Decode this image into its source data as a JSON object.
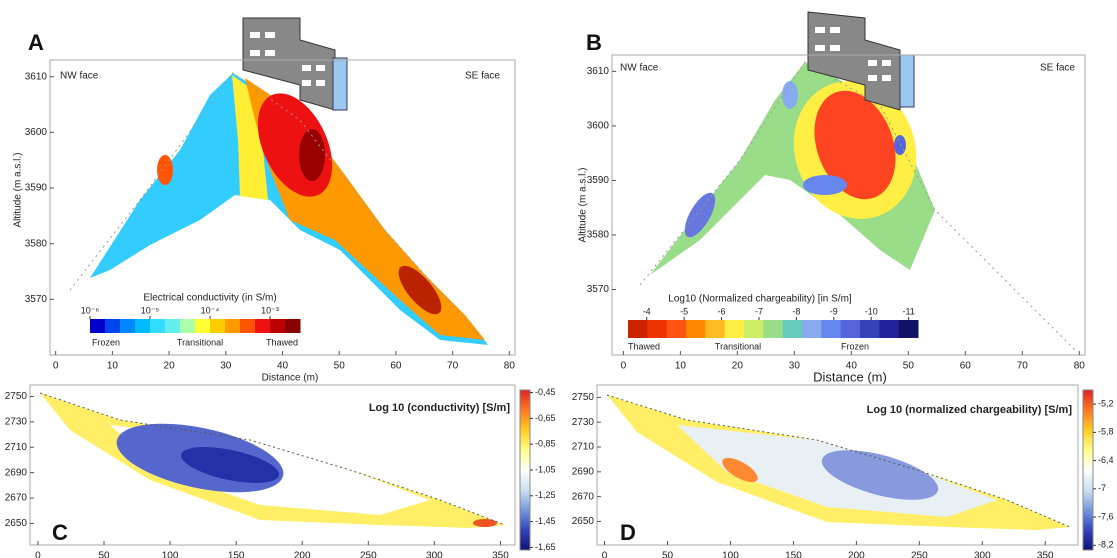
{
  "chart_data": [
    {
      "type": "contour",
      "panel": "A",
      "annotations": [
        "NW face",
        "SE face"
      ],
      "xlabel": "Distance (m)",
      "ylabel": "Altitude (m a.s.l.)",
      "xlim": [
        -1,
        81
      ],
      "xticks": [
        0,
        10,
        20,
        30,
        40,
        50,
        60,
        70,
        80
      ],
      "ylim": [
        3560,
        3613
      ],
      "yticks": [
        3570,
        3580,
        3590,
        3600,
        3610
      ],
      "colorbar": {
        "title": "Electrical conductivity (in S/m)",
        "clim": [
          -6,
          -2.5
        ],
        "ticks": [
          {
            "value": -6,
            "label": "10⁻⁶"
          },
          {
            "value": -5,
            "label": "10⁻⁵"
          },
          {
            "value": -4,
            "label": "10⁻⁴"
          },
          {
            "value": -3,
            "label": "10⁻³"
          }
        ],
        "colors": [
          "#0000cc",
          "#0044ee",
          "#0088ff",
          "#00bbff",
          "#33ddff",
          "#66eeee",
          "#aaffaa",
          "#ffff33",
          "#ffcc00",
          "#ff9900",
          "#ff5500",
          "#ee1111",
          "#bb0000",
          "#880000"
        ],
        "class_labels": [
          "Frozen",
          "Transitional",
          "Thawed"
        ]
      }
    },
    {
      "type": "contour",
      "panel": "B",
      "annotations": [
        "NW face",
        "SE face"
      ],
      "xlabel": "Distance (m)",
      "ylabel": "Altitude (m a.s.l.)",
      "xlim": [
        -2,
        81
      ],
      "xticks": [
        0,
        10,
        20,
        30,
        40,
        50,
        60,
        70,
        80
      ],
      "ylim": [
        3558,
        3613
      ],
      "yticks": [
        3570,
        3580,
        3590,
        3600,
        3610
      ],
      "colorbar": {
        "title": "Log10 (Normalized chargeability) [in S/m]",
        "clim": [
          -3.5,
          -11.25
        ],
        "ticks": [
          -4,
          -5,
          -6,
          -7,
          -8,
          -9,
          -10,
          -11
        ],
        "colors": [
          "#cc2200",
          "#ee3300",
          "#ff5511",
          "#ff8800",
          "#ffbb22",
          "#ffee44",
          "#ccee66",
          "#99dd88",
          "#66ccbb",
          "#88aaee",
          "#6688ee",
          "#5566dd",
          "#3344bb",
          "#222299",
          "#111166"
        ],
        "class_labels": [
          "Thawed",
          "Transitional",
          "Frozen"
        ]
      }
    },
    {
      "type": "contour",
      "panel": "C",
      "xlim": [
        -6,
        361
      ],
      "xticks": [
        0,
        50,
        100,
        150,
        200,
        250,
        300,
        350
      ],
      "ylim": [
        2633,
        2759
      ],
      "yticks": [
        2650,
        2670,
        2690,
        2710,
        2730,
        2750
      ],
      "colorbar": {
        "title": "Log 10 (conductivity) [S/m]",
        "clim": [
          -0.43,
          -1.67
        ],
        "ticks": [
          {
            "value": -0.45,
            "label": "-0,45"
          },
          {
            "value": -0.65,
            "label": "-0,65"
          },
          {
            "value": -0.85,
            "label": "-0,85"
          },
          {
            "value": -1.05,
            "label": "-1,05"
          },
          {
            "value": -1.25,
            "label": "-1,25"
          },
          {
            "value": -1.45,
            "label": "-1,45"
          },
          {
            "value": -1.65,
            "label": "-1,65"
          }
        ],
        "colors": [
          "#dd2222",
          "#ff7722",
          "#ffcc22",
          "#ffff88",
          "#ffffff",
          "#cce0f0",
          "#7799dd",
          "#3344bb",
          "#111177"
        ]
      }
    },
    {
      "type": "contour",
      "panel": "D",
      "xlim": [
        -6,
        376
      ],
      "xticks": [
        0,
        50,
        100,
        150,
        200,
        250,
        300,
        350
      ],
      "ylim": [
        2631,
        2760
      ],
      "yticks": [
        2650,
        2670,
        2690,
        2710,
        2730,
        2750
      ],
      "colorbar": {
        "title": "Log 10 (normalized chargeability) [S/m]",
        "clim": [
          -4.9,
          -8.3
        ],
        "ticks": [
          {
            "value": -5.2,
            "label": "-5,2"
          },
          {
            "value": -5.8,
            "label": "-5,8"
          },
          {
            "value": -6.4,
            "label": "-6,4"
          },
          -7,
          {
            "value": -7.6,
            "label": "-7,6"
          },
          {
            "value": -8.2,
            "label": "-8,2"
          }
        ],
        "colors": [
          "#dd2222",
          "#ff7722",
          "#ffcc22",
          "#ffff88",
          "#ffffff",
          "#cce0f0",
          "#7799dd",
          "#3344bb",
          "#111177"
        ]
      }
    }
  ]
}
